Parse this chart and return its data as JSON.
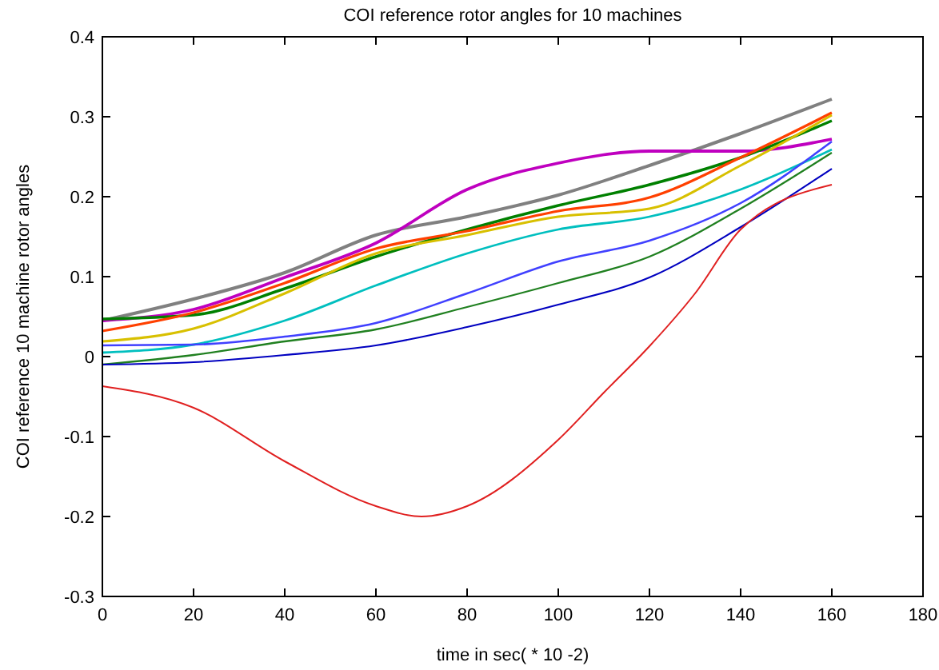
{
  "chart_data": {
    "type": "line",
    "title": "COI reference rotor angles for 10 machines",
    "xlabel": "time in sec( * 10 -2)",
    "ylabel": "COI reference 10 machine rotor angles",
    "x": [
      0,
      20,
      40,
      60,
      80,
      100,
      120,
      140,
      160
    ],
    "xlim": [
      0,
      180
    ],
    "xticks": [
      0,
      20,
      40,
      60,
      80,
      100,
      120,
      140,
      160,
      180
    ],
    "ylim": [
      -0.3,
      0.4
    ],
    "yticks": [
      -0.3,
      -0.2,
      -0.1,
      0,
      0.1,
      0.2,
      0.3,
      0.4
    ],
    "grid": false,
    "marker": "none",
    "line_style": "solid",
    "series": [
      {
        "color": "#808080",
        "values": [
          0.045,
          0.072,
          0.105,
          0.152,
          0.175,
          0.202,
          0.239,
          0.279,
          0.322
        ]
      },
      {
        "color": "#bf00bf",
        "values": [
          0.045,
          0.059,
          0.099,
          0.142,
          0.209,
          0.242,
          0.257,
          0.257,
          0.272
        ]
      },
      {
        "color": "#008000",
        "values": [
          0.047,
          0.052,
          0.085,
          0.125,
          0.159,
          0.189,
          0.215,
          0.249,
          0.295
        ]
      },
      {
        "color": "#ff4000",
        "values": [
          0.032,
          0.055,
          0.092,
          0.135,
          0.157,
          0.182,
          0.199,
          0.249,
          0.305
        ]
      },
      {
        "color": "#d8c000",
        "values": [
          0.019,
          0.035,
          0.079,
          0.129,
          0.152,
          0.175,
          0.185,
          0.239,
          0.302
        ]
      },
      {
        "color": "#00bfbf",
        "values": [
          0.005,
          0.015,
          0.045,
          0.089,
          0.129,
          0.159,
          0.175,
          0.209,
          0.259
        ]
      },
      {
        "color": "#4040ff",
        "values": [
          0.014,
          0.015,
          0.025,
          0.042,
          0.079,
          0.119,
          0.145,
          0.192,
          0.269
        ]
      },
      {
        "color": "#208020",
        "values": [
          -0.01,
          0.002,
          0.019,
          0.034,
          0.062,
          0.092,
          0.125,
          0.185,
          0.255
        ]
      },
      {
        "color": "#0000c0",
        "values": [
          -0.01,
          -0.007,
          0.002,
          0.014,
          0.037,
          0.065,
          0.099,
          0.162,
          0.235
        ]
      },
      {
        "color": "#e02020",
        "x": [
          0,
          20,
          40,
          60,
          70,
          80,
          100,
          110,
          120,
          130,
          140,
          160
        ],
        "values": [
          -0.037,
          -0.064,
          -0.131,
          -0.187,
          -0.2,
          -0.187,
          -0.104,
          -0.045,
          0.013,
          0.079,
          0.159,
          0.215
        ]
      }
    ]
  }
}
